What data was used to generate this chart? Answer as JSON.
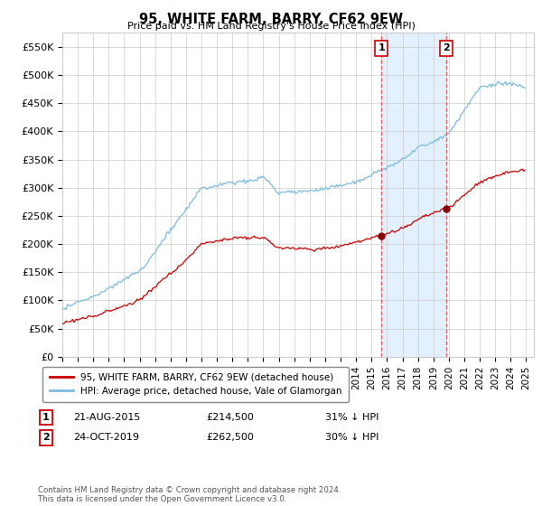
{
  "title": "95, WHITE FARM, BARRY, CF62 9EW",
  "subtitle": "Price paid vs. HM Land Registry's House Price Index (HPI)",
  "ylim": [
    0,
    575000
  ],
  "yticks": [
    0,
    50000,
    100000,
    150000,
    200000,
    250000,
    300000,
    350000,
    400000,
    450000,
    500000,
    550000
  ],
  "ytick_labels": [
    "£0",
    "£50K",
    "£100K",
    "£150K",
    "£200K",
    "£250K",
    "£300K",
    "£350K",
    "£400K",
    "£450K",
    "£500K",
    "£550K"
  ],
  "xlim_start": 1995.0,
  "xlim_end": 2025.5,
  "marker1_x": 2015.64,
  "marker1_y": 214500,
  "marker1_label": "1",
  "marker1_date": "21-AUG-2015",
  "marker1_price": "£214,500",
  "marker1_note": "31% ↓ HPI",
  "marker2_x": 2019.82,
  "marker2_y": 262500,
  "marker2_label": "2",
  "marker2_date": "24-OCT-2019",
  "marker2_price": "£262,500",
  "marker2_note": "30% ↓ HPI",
  "hpi_color": "#7bbce0",
  "price_color": "#cc0000",
  "shade_color": "#ddeeff",
  "legend_entry1": "95, WHITE FARM, BARRY, CF62 9EW (detached house)",
  "legend_entry2": "HPI: Average price, detached house, Vale of Glamorgan",
  "footer": "Contains HM Land Registry data © Crown copyright and database right 2024.\nThis data is licensed under the Open Government Licence v3.0.",
  "xticks": [
    1995,
    1996,
    1997,
    1998,
    1999,
    2000,
    2001,
    2002,
    2003,
    2004,
    2005,
    2006,
    2007,
    2008,
    2009,
    2010,
    2011,
    2012,
    2013,
    2014,
    2015,
    2016,
    2017,
    2018,
    2019,
    2020,
    2021,
    2022,
    2023,
    2024,
    2025
  ]
}
